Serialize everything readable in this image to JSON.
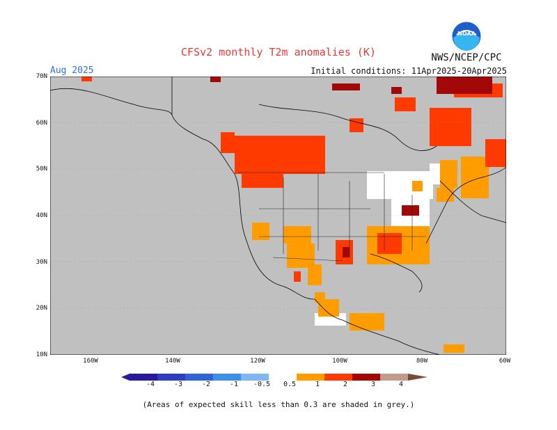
{
  "title": "CFSv2 monthly T2m anomalies (K)",
  "month": "Aug 2025",
  "agency": "NWS/NCEP/CPC",
  "initial_conditions": "Initial conditions: 11Apr2025-20Apr2025",
  "logo_text": "NOAA",
  "lat_labels": [
    "70N",
    "60N",
    "50N",
    "40N",
    "30N",
    "20N",
    "10N"
  ],
  "lon_labels": [
    "160W",
    "140W",
    "120W",
    "100W",
    "80W",
    "60W"
  ],
  "colorbar": {
    "labels": [
      "-4",
      "-3",
      "-2",
      "-1",
      "-0.5",
      "0.5",
      "1",
      "2",
      "3",
      "4"
    ],
    "colors": [
      "#2a1a9c",
      "#2b3fc0",
      "#2f63d6",
      "#3e8fe6",
      "#7eb8f2",
      "#ffffff",
      "#ff9d00",
      "#ff3a00",
      "#a30808",
      "#c49a8c",
      "#7a4a3a"
    ]
  },
  "colors": {
    "land_mask": "#c0c0c0",
    "anomaly_05_1": "#ff9d00",
    "anomaly_1_2": "#ff3a00",
    "anomaly_2_3": "#a30808",
    "anomaly_3_4": "#c49a8c"
  },
  "footnote": "(Areas of expected skill less than 0.3 are shaded in grey.)"
}
